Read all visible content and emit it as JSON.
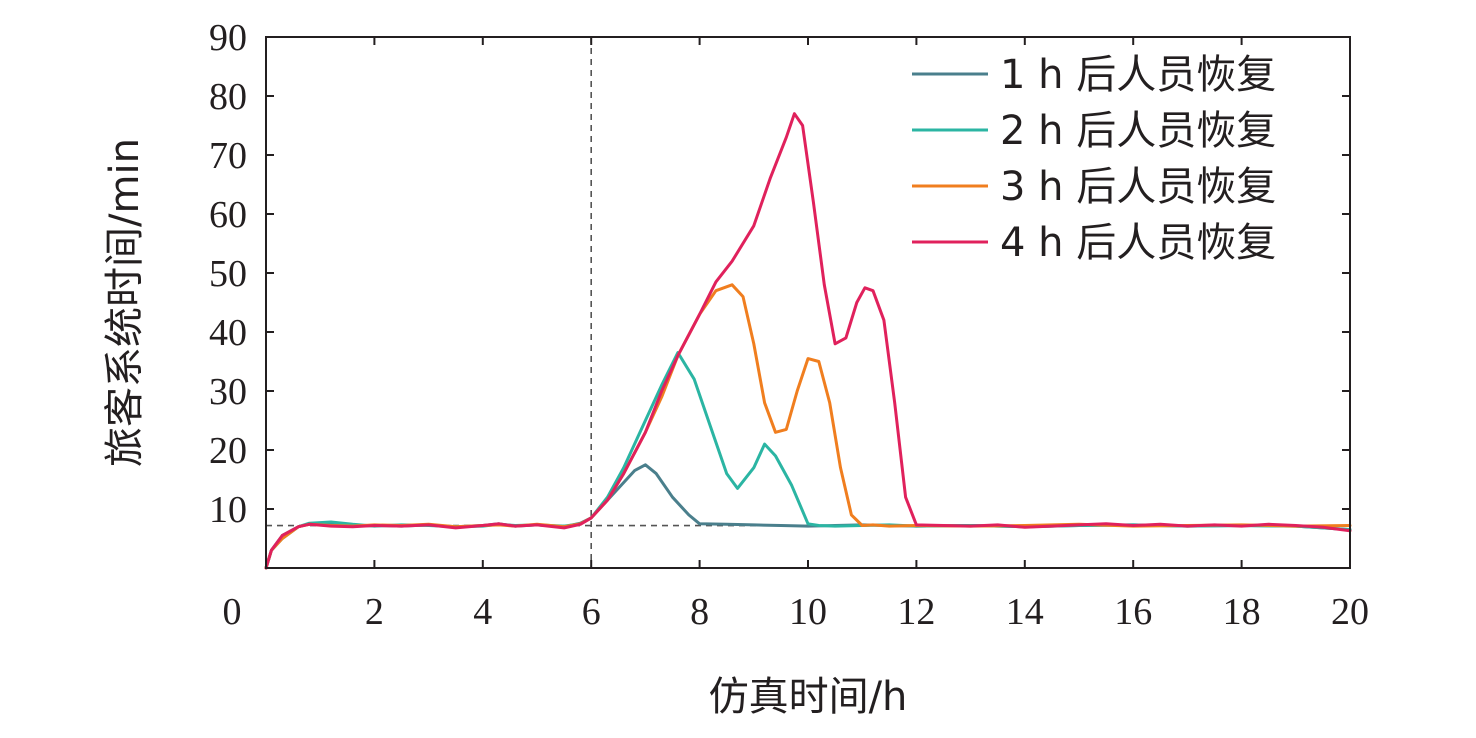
{
  "chart_data": {
    "type": "line",
    "title": "",
    "xlabel": "仿真时间/h",
    "ylabel": "旅客系统时间/min",
    "xlim": [
      0,
      20
    ],
    "ylim": [
      0,
      90
    ],
    "xticks": [
      "0",
      "2",
      "4",
      "6",
      "8",
      "10",
      "12",
      "14",
      "16",
      "18",
      "20"
    ],
    "yticks": [
      "10",
      "20",
      "30",
      "40",
      "50",
      "60",
      "70",
      "80",
      "90"
    ],
    "grid": false,
    "legend_position": "top-right",
    "reference_lines": {
      "vertical_x": 6,
      "horizontal_y": 7.2,
      "style": "dashed"
    },
    "series": [
      {
        "name": "1 h 后人员恢复",
        "color": "#4a7f8c",
        "x": [
          0,
          0.1,
          0.3,
          0.6,
          0.8,
          1.2,
          1.6,
          2,
          2.5,
          3,
          3.5,
          4,
          4.3,
          4.6,
          5,
          5.5,
          5.8,
          6,
          6.2,
          6.5,
          6.8,
          7,
          7.2,
          7.5,
          7.8,
          8,
          8.5,
          9,
          9.5,
          10,
          10.5,
          11,
          11.5,
          12,
          13,
          14,
          15,
          16,
          17,
          18,
          19,
          20
        ],
        "y": [
          0,
          3,
          5.5,
          7,
          7.5,
          7.3,
          7.1,
          7.2,
          7.1,
          7.3,
          7,
          7.2,
          7.5,
          7.1,
          7.3,
          7,
          7.6,
          8.5,
          10.5,
          13.5,
          16.5,
          17.5,
          16,
          12,
          9,
          7.5,
          7.4,
          7.3,
          7.2,
          7.1,
          7.2,
          7.3,
          7.2,
          7.1,
          7.2,
          7,
          7.2,
          7.3,
          7.1,
          7.2,
          7.1,
          6.5
        ]
      },
      {
        "name": "2 h 后人员恢复",
        "color": "#2bb5a3",
        "x": [
          0,
          0.1,
          0.3,
          0.6,
          0.8,
          1.2,
          1.6,
          2,
          2.5,
          3,
          3.5,
          4,
          4.3,
          4.6,
          5,
          5.5,
          5.8,
          6,
          6.3,
          6.6,
          7,
          7.3,
          7.6,
          7.9,
          8.2,
          8.5,
          8.7,
          9,
          9.2,
          9.4,
          9.7,
          10,
          10.2,
          10.5,
          11,
          11.5,
          12,
          13,
          14,
          15,
          16,
          17,
          18,
          19,
          20
        ],
        "y": [
          0,
          3,
          5,
          7,
          7.6,
          7.8,
          7.4,
          7.1,
          7.3,
          7.2,
          7,
          7.1,
          7.4,
          7.2,
          7.3,
          7.1,
          7.5,
          8.5,
          12,
          17,
          25,
          31,
          36.5,
          32,
          24,
          16,
          13.5,
          17,
          21,
          19,
          14,
          7.5,
          7.2,
          7.1,
          7.2,
          7.3,
          7.1,
          7.2,
          7,
          7.2,
          7.3,
          7.1,
          7.2,
          7.1,
          6.5
        ]
      },
      {
        "name": "3 h 后人员恢复",
        "color": "#f07e1f",
        "x": [
          0,
          0.1,
          0.3,
          0.6,
          0.8,
          1.2,
          1.6,
          2,
          2.5,
          3,
          3.5,
          4,
          4.3,
          4.6,
          5,
          5.5,
          5.8,
          6,
          6.3,
          6.6,
          7,
          7.3,
          7.6,
          8,
          8.3,
          8.6,
          8.8,
          9,
          9.2,
          9.4,
          9.6,
          9.8,
          10,
          10.2,
          10.4,
          10.6,
          10.8,
          11,
          11.2,
          11.5,
          12,
          13,
          14,
          15,
          16,
          17,
          18,
          19,
          20
        ],
        "y": [
          0,
          3,
          5,
          7,
          7.4,
          7.2,
          7.1,
          7.3,
          7.2,
          7.4,
          7,
          7.2,
          7.3,
          7.1,
          7.4,
          7,
          7.5,
          8.5,
          11.5,
          16,
          23,
          29,
          36,
          43,
          47,
          48,
          46,
          38,
          28,
          23,
          23.5,
          30,
          35.5,
          35,
          28,
          17,
          9,
          7.2,
          7.3,
          7.1,
          7.2,
          7.1,
          7.2,
          7.4,
          7.1,
          7.2,
          7.3,
          7.1,
          7.2
        ]
      },
      {
        "name": "4 h 后人员恢复",
        "color": "#e0215c",
        "x": [
          0,
          0.1,
          0.3,
          0.6,
          0.8,
          1.2,
          1.6,
          2,
          2.5,
          3,
          3.5,
          4,
          4.3,
          4.6,
          5,
          5.5,
          5.8,
          6,
          6.3,
          6.6,
          7,
          7.3,
          7.6,
          8,
          8.3,
          8.6,
          9,
          9.3,
          9.6,
          9.75,
          9.9,
          10.1,
          10.3,
          10.5,
          10.7,
          10.9,
          11.05,
          11.2,
          11.4,
          11.6,
          11.8,
          12,
          12.5,
          13,
          13.5,
          14,
          14.5,
          15,
          15.5,
          16,
          16.5,
          17,
          17.5,
          18,
          18.5,
          19,
          19.5,
          20
        ],
        "y": [
          0,
          3,
          5.5,
          7,
          7.4,
          7.1,
          7,
          7.2,
          7.1,
          7.3,
          6.8,
          7.2,
          7.5,
          7.1,
          7.3,
          6.8,
          7.4,
          8.5,
          11.5,
          16,
          23,
          30,
          36,
          43,
          48.5,
          52,
          58,
          66,
          73,
          77,
          75,
          62,
          48,
          38,
          39,
          45,
          47.5,
          47,
          42,
          28,
          12,
          7.3,
          7.2,
          7.1,
          7.3,
          6.9,
          7.1,
          7.3,
          7.5,
          7.2,
          7.4,
          7.1,
          7.3,
          7.1,
          7.4,
          7.2,
          6.9,
          6.3
        ]
      }
    ]
  }
}
